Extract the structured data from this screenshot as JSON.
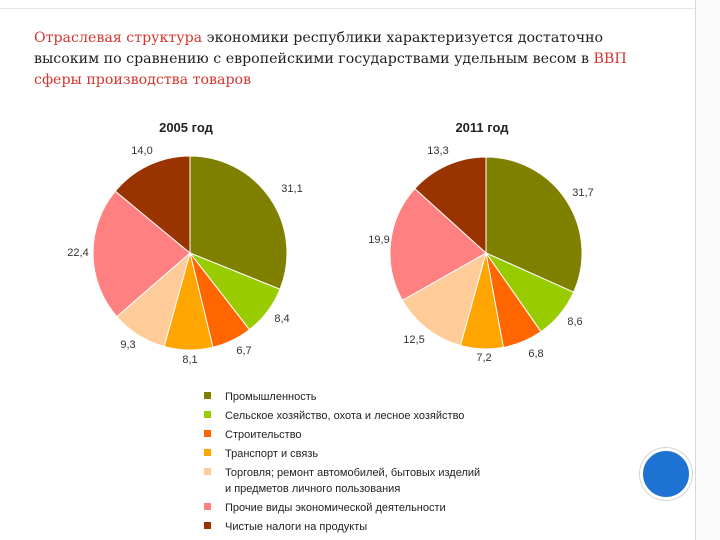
{
  "heading": {
    "part1": "Отраслевая структура",
    "part2": " экономики республики характеризуется достаточно высоким по сравнению с европейскими государствами удельным весом в ",
    "part3": "ВВП сферы производства товаров"
  },
  "colors": [
    "#808000",
    "#99cc00",
    "#ff6600",
    "#ffa500",
    "#ffcc99",
    "#ff8080",
    "#993300"
  ],
  "chart_data": [
    {
      "type": "pie",
      "title": "2005 год",
      "categories": [
        "Промышленность",
        "Сельское хозяйство, охота и лесное хозяйство",
        "Строительство",
        "Транспорт и связь",
        "Торговля; ремонт автомобилей, бытовых изделий и предметов личного пользования",
        "Прочие виды экономической деятельности",
        "Чистые налоги на продукты"
      ],
      "values": [
        31.1,
        8.4,
        6.7,
        8.1,
        9.3,
        22.4,
        14.0
      ],
      "labels": [
        "31,1",
        "8,4",
        "6,7",
        "8,1",
        "9,3",
        "22,4",
        "14,0"
      ]
    },
    {
      "type": "pie",
      "title": "2011 год",
      "categories": [
        "Промышленность",
        "Сельское хозяйство, охота и лесное хозяйство",
        "Строительство",
        "Транспорт и связь",
        "Торговля; ремонт автомобилей, бытовых изделий и предметов личного пользования",
        "Прочие виды экономической деятельности",
        "Чистые налоги на продукты"
      ],
      "values": [
        31.7,
        8.6,
        6.8,
        7.2,
        12.5,
        19.9,
        13.3
      ],
      "labels": [
        "31,7",
        "8,6",
        "6,8",
        "7,2",
        "12,5",
        "19,9",
        "13,3"
      ]
    }
  ],
  "legend": {
    "items": [
      "Промышленность",
      "Сельское хозяйство, охота и лесное хозяйство",
      "Строительство",
      "Транспорт и связь",
      "Торговля; ремонт автомобилей, бытовых изделий",
      "и предметов личного пользования",
      "Прочие виды экономической деятельности",
      "Чистые налоги на продукты"
    ]
  }
}
